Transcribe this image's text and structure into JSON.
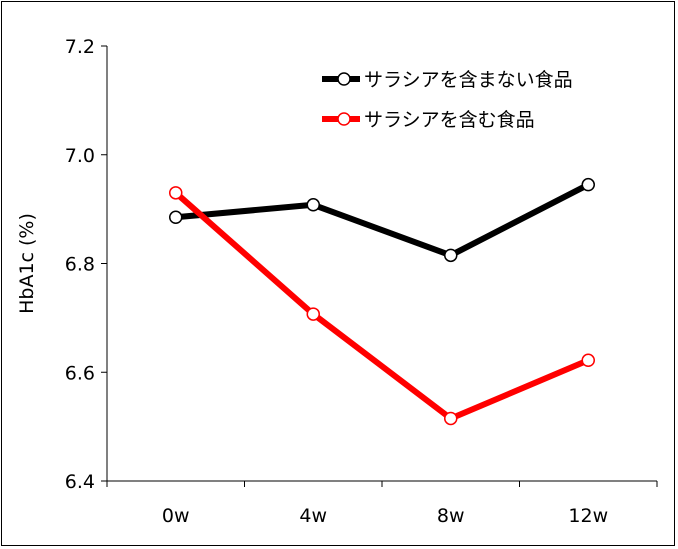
{
  "chart_data": {
    "type": "line",
    "categories": [
      "0w",
      "4w",
      "8w",
      "12w"
    ],
    "series": [
      {
        "name": "サラシアを含まない食品",
        "values": [
          6.885,
          6.908,
          6.815,
          6.945
        ],
        "color": "#000000"
      },
      {
        "name": "サラシアを含む食品",
        "values": [
          6.93,
          6.707,
          6.515,
          6.622
        ],
        "color": "#ff0000"
      }
    ],
    "ylabel": "HbA1c (%)",
    "ylim": [
      6.4,
      7.2
    ],
    "yticks": [
      "6.4",
      "6.6",
      "6.8",
      "7.0",
      "7.2"
    ],
    "grid": false,
    "legend_position": "top-right"
  }
}
